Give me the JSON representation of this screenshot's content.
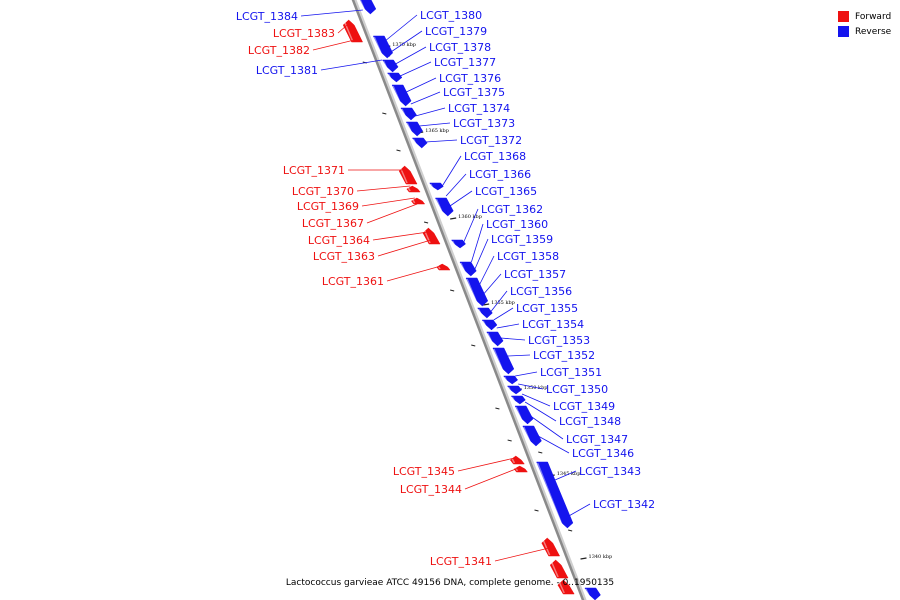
{
  "colors": {
    "forward": "#ee1111",
    "reverse": "#1414ee",
    "backbone": "#8a8a8a"
  },
  "legend": [
    {
      "label": "Forward",
      "color": "#ee1111"
    },
    {
      "label": "Reverse",
      "color": "#1414ee"
    }
  ],
  "caption": "Lactococcus garvieae ATCC 49156 DNA, complete genome. - 0..1950135",
  "ticks": [
    "1370 kbp",
    "1365 kbp",
    "1360 kbp",
    "1355 kbp",
    "1350 kbp",
    "1345 kbp",
    "1340 kbp"
  ],
  "forward_genes": [
    "LCGT_1383",
    "LCGT_1382",
    "LCGT_1371",
    "LCGT_1370",
    "LCGT_1369",
    "LCGT_1367",
    "LCGT_1364",
    "LCGT_1363",
    "LCGT_1361",
    "LCGT_1345",
    "LCGT_1344",
    "LCGT_1341"
  ],
  "reverse_genes": [
    "LCGT_1384",
    "LCGT_1381",
    "LCGT_1380",
    "LCGT_1379",
    "LCGT_1378",
    "LCGT_1377",
    "LCGT_1376",
    "LCGT_1375",
    "LCGT_1374",
    "LCGT_1373",
    "LCGT_1372",
    "LCGT_1368",
    "LCGT_1366",
    "LCGT_1365",
    "LCGT_1362",
    "LCGT_1360",
    "LCGT_1359",
    "LCGT_1358",
    "LCGT_1357",
    "LCGT_1356",
    "LCGT_1355",
    "LCGT_1354",
    "LCGT_1353",
    "LCGT_1352",
    "LCGT_1351",
    "LCGT_1350",
    "LCGT_1349",
    "LCGT_1348",
    "LCGT_1347",
    "LCGT_1346",
    "LCGT_1343",
    "LCGT_1342"
  ]
}
